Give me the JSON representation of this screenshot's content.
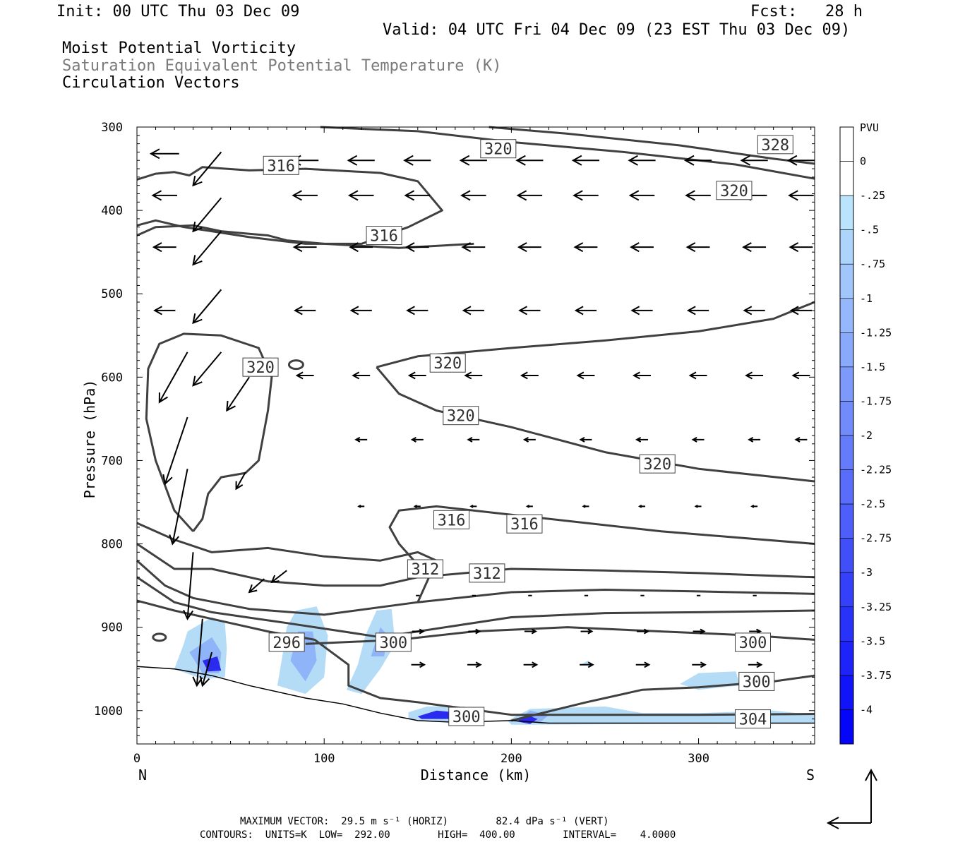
{
  "header": {
    "init": "Init: 00 UTC Thu 03 Dec 09",
    "fcst": "Fcst:   28 h",
    "valid": "Valid: 04 UTC Fri 04 Dec 09 (23 EST Thu 03 Dec 09)",
    "field1": "Moist Potential Vorticity",
    "field2": "Saturation Equivalent Potential Temperature (K)",
    "field3": "Circulation Vectors"
  },
  "footer": {
    "line1": "MAXIMUM VECTOR:  29.5 m s⁻¹ (HORIZ)        82.4 dPa s⁻¹ (VERT)",
    "line2": "CONTOURS:  UNITS=K  LOW=  292.00        HIGH=  400.00        INTERVAL=    4.0000"
  },
  "colors": {
    "contour": "#404040",
    "shade_light": "#b5dcf7",
    "shade_mid": "#8fb4f7",
    "shade_dark": "#2b2bf0",
    "vector": "#000000"
  },
  "chart_data": {
    "type": "cross-section",
    "xlabel": "Distance (km)",
    "ylabel": "Pressure (hPa)",
    "xlim": [
      0,
      362
    ],
    "ylim": [
      300,
      1040
    ],
    "x_ticks": [
      0,
      100,
      200,
      300
    ],
    "y_ticks": [
      300,
      400,
      500,
      600,
      700,
      800,
      900,
      1000
    ],
    "left_end_label": "N",
    "right_end_label": "S",
    "colorbar": {
      "units": "PVU",
      "labels": [
        "0",
        "-.25",
        "-.5",
        "-.75",
        "-1",
        "-1.25",
        "-1.5",
        "-1.75",
        "-2",
        "-2.25",
        "-2.5",
        "-2.75",
        "-3",
        "-3.25",
        "-3.5",
        "-3.75",
        "-4"
      ]
    },
    "contour_labels": [
      {
        "value": "328",
        "x": 341,
        "p": 321
      },
      {
        "value": "320",
        "x": 193,
        "p": 326
      },
      {
        "value": "316",
        "x": 77,
        "p": 346
      },
      {
        "value": "320",
        "x": 319,
        "p": 376
      },
      {
        "value": "316",
        "x": 132,
        "p": 430
      },
      {
        "value": "320",
        "x": 66,
        "p": 588
      },
      {
        "value": "320",
        "x": 166,
        "p": 583
      },
      {
        "value": "320",
        "x": 173,
        "p": 646
      },
      {
        "value": "320",
        "x": 278,
        "p": 704
      },
      {
        "value": "316",
        "x": 168,
        "p": 771
      },
      {
        "value": "316",
        "x": 207,
        "p": 776
      },
      {
        "value": "312",
        "x": 154,
        "p": 830
      },
      {
        "value": "312",
        "x": 187,
        "p": 835
      },
      {
        "value": "296",
        "x": 80,
        "p": 918
      },
      {
        "value": "300",
        "x": 137,
        "p": 918
      },
      {
        "value": "300",
        "x": 329,
        "p": 918
      },
      {
        "value": "300",
        "x": 331,
        "p": 965
      },
      {
        "value": "300",
        "x": 176,
        "p": 1007
      },
      {
        "value": "304",
        "x": 329,
        "p": 1010
      }
    ],
    "contours": [
      [
        [
          188,
          300
        ],
        [
          230,
          308
        ],
        [
          290,
          322
        ],
        [
          340,
          338
        ],
        [
          362,
          344
        ]
      ],
      [
        [
          98,
          300
        ],
        [
          150,
          305
        ],
        [
          200,
          318
        ],
        [
          260,
          330
        ],
        [
          320,
          345
        ],
        [
          362,
          362
        ]
      ],
      [
        [
          0,
          363
        ],
        [
          10,
          356
        ],
        [
          20,
          354
        ],
        [
          28,
          358
        ],
        [
          35,
          348
        ],
        [
          60,
          352
        ],
        [
          90,
          350
        ],
        [
          130,
          355
        ],
        [
          150,
          365
        ],
        [
          163,
          400
        ],
        [
          145,
          420
        ],
        [
          120,
          440
        ],
        [
          90,
          440
        ],
        [
          60,
          432
        ],
        [
          40,
          425
        ],
        [
          25,
          420
        ],
        [
          10,
          412
        ],
        [
          0,
          418
        ]
      ],
      [
        [
          0,
          430
        ],
        [
          10,
          420
        ],
        [
          30,
          418
        ],
        [
          45,
          425
        ],
        [
          60,
          428
        ],
        [
          70,
          430
        ],
        [
          80,
          436
        ],
        [
          100,
          440
        ],
        [
          140,
          445
        ],
        [
          180,
          440
        ]
      ],
      [
        [
          128,
          588
        ],
        [
          150,
          575
        ],
        [
          200,
          565
        ],
        [
          250,
          556
        ],
        [
          300,
          545
        ],
        [
          340,
          530
        ],
        [
          362,
          510
        ]
      ],
      [
        [
          128,
          588
        ],
        [
          140,
          620
        ],
        [
          160,
          640
        ],
        [
          200,
          660
        ],
        [
          250,
          690
        ],
        [
          300,
          710
        ],
        [
          362,
          725
        ]
      ],
      [
        [
          30,
          785
        ],
        [
          20,
          760
        ],
        [
          10,
          700
        ],
        [
          5,
          650
        ],
        [
          6,
          590
        ],
        [
          12,
          560
        ],
        [
          25,
          548
        ],
        [
          45,
          550
        ],
        [
          65,
          565
        ],
        [
          72,
          600
        ],
        [
          70,
          640
        ],
        [
          65,
          700
        ],
        [
          58,
          715
        ],
        [
          45,
          720
        ],
        [
          38,
          740
        ],
        [
          35,
          770
        ],
        [
          30,
          785
        ]
      ],
      [
        [
          0,
          775
        ],
        [
          20,
          795
        ],
        [
          40,
          810
        ],
        [
          70,
          805
        ],
        [
          100,
          815
        ],
        [
          130,
          820
        ],
        [
          150,
          810
        ],
        [
          160,
          820
        ],
        [
          150,
          870
        ]
      ],
      [
        [
          148,
          820
        ],
        [
          140,
          800
        ],
        [
          135,
          780
        ],
        [
          140,
          760
        ],
        [
          160,
          755
        ],
        [
          200,
          765
        ],
        [
          280,
          785
        ],
        [
          362,
          800
        ]
      ],
      [
        [
          0,
          800
        ],
        [
          20,
          830
        ],
        [
          40,
          830
        ],
        [
          70,
          845
        ],
        [
          100,
          850
        ],
        [
          130,
          850
        ],
        [
          150,
          840
        ],
        [
          200,
          830
        ],
        [
          250,
          832
        ],
        [
          300,
          835
        ],
        [
          362,
          840
        ]
      ],
      [
        [
          0,
          820
        ],
        [
          15,
          850
        ],
        [
          30,
          865
        ],
        [
          60,
          878
        ],
        [
          100,
          885
        ],
        [
          150,
          870
        ],
        [
          200,
          858
        ],
        [
          250,
          855
        ],
        [
          300,
          857
        ],
        [
          362,
          860
        ]
      ],
      [
        [
          0,
          840
        ],
        [
          20,
          870
        ],
        [
          40,
          882
        ],
        [
          80,
          895
        ],
        [
          110,
          905
        ],
        [
          130,
          912
        ],
        [
          150,
          905
        ],
        [
          200,
          888
        ],
        [
          250,
          883
        ],
        [
          300,
          882
        ],
        [
          362,
          880
        ]
      ],
      [
        [
          0,
          868
        ],
        [
          20,
          880
        ],
        [
          40,
          890
        ],
        [
          70,
          905
        ],
        [
          95,
          915
        ],
        [
          113,
          945
        ],
        [
          113,
          970
        ],
        [
          130,
          985
        ],
        [
          150,
          990
        ],
        [
          200,
          1005
        ],
        [
          260,
          1005
        ],
        [
          300,
          1005
        ],
        [
          362,
          1004
        ]
      ],
      [
        [
          90,
          920
        ],
        [
          140,
          915
        ],
        [
          180,
          905
        ],
        [
          230,
          900
        ],
        [
          280,
          905
        ],
        [
          330,
          910
        ],
        [
          362,
          915
        ]
      ],
      [
        [
          200,
          1012
        ],
        [
          240,
          990
        ],
        [
          270,
          975
        ],
        [
          300,
          972
        ],
        [
          340,
          965
        ],
        [
          362,
          958
        ]
      ]
    ],
    "shading": [
      {
        "level": "light",
        "points": [
          [
            27,
            905
          ],
          [
            40,
            888
          ],
          [
            47,
            895
          ],
          [
            48,
            925
          ],
          [
            47,
            960
          ],
          [
            35,
            962
          ],
          [
            20,
            950
          ],
          [
            25,
            920
          ]
        ]
      },
      {
        "level": "mid",
        "points": [
          [
            28,
            930
          ],
          [
            40,
            912
          ],
          [
            45,
            930
          ],
          [
            44,
            955
          ],
          [
            35,
            955
          ]
        ]
      },
      {
        "level": "dark",
        "points": [
          [
            35,
            940
          ],
          [
            43,
            935
          ],
          [
            45,
            952
          ],
          [
            38,
            953
          ]
        ]
      },
      {
        "level": "light",
        "points": [
          [
            75,
            970
          ],
          [
            78,
            930
          ],
          [
            80,
            900
          ],
          [
            85,
            880
          ],
          [
            96,
            875
          ],
          [
            102,
            910
          ],
          [
            100,
            960
          ],
          [
            90,
            980
          ]
        ]
      },
      {
        "level": "mid",
        "points": [
          [
            82,
            940
          ],
          [
            86,
            905
          ],
          [
            94,
            905
          ],
          [
            96,
            940
          ],
          [
            90,
            965
          ]
        ]
      },
      {
        "level": "light",
        "points": [
          [
            112,
            975
          ],
          [
            118,
            945
          ],
          [
            122,
            910
          ],
          [
            128,
            880
          ],
          [
            136,
            878
          ],
          [
            138,
            920
          ],
          [
            130,
            950
          ],
          [
            120,
            980
          ]
        ]
      },
      {
        "level": "mid",
        "points": [
          [
            125,
            935
          ],
          [
            130,
            900
          ],
          [
            134,
            910
          ],
          [
            132,
            935
          ]
        ]
      },
      {
        "level": "light",
        "points": [
          [
            145,
            1002
          ],
          [
            155,
            995
          ],
          [
            175,
            995
          ],
          [
            185,
            1008
          ],
          [
            170,
            1015
          ],
          [
            145,
            1010
          ]
        ]
      },
      {
        "level": "dark",
        "points": [
          [
            150,
            1007
          ],
          [
            160,
            1000
          ],
          [
            170,
            1002
          ],
          [
            172,
            1010
          ],
          [
            152,
            1010
          ]
        ]
      },
      {
        "level": "light",
        "points": [
          [
            198,
            1012
          ],
          [
            210,
            998
          ],
          [
            250,
            995
          ],
          [
            270,
            1003
          ],
          [
            300,
            1003
          ],
          [
            340,
            1000
          ],
          [
            362,
            1005
          ],
          [
            362,
            1015
          ],
          [
            200,
            1017
          ]
        ]
      },
      {
        "level": "mid",
        "points": [
          [
            203,
            1012
          ],
          [
            210,
            1000
          ],
          [
            220,
            1005
          ],
          [
            215,
            1015
          ]
        ]
      },
      {
        "level": "dark",
        "points": [
          [
            203,
            1013
          ],
          [
            208,
            1005
          ],
          [
            214,
            1010
          ],
          [
            210,
            1016
          ]
        ]
      },
      {
        "level": "light",
        "points": [
          [
            290,
            968
          ],
          [
            300,
            955
          ],
          [
            320,
            953
          ],
          [
            322,
            970
          ],
          [
            300,
            975
          ]
        ]
      },
      {
        "level": "light",
        "points": [
          [
            237,
            945
          ],
          [
            241,
            940
          ],
          [
            243,
            946
          ]
        ]
      }
    ],
    "terrain": [
      [
        0,
        947
      ],
      [
        20,
        950
      ],
      [
        30,
        954
      ],
      [
        40,
        958
      ],
      [
        60,
        970
      ],
      [
        90,
        985
      ],
      [
        110,
        992
      ],
      [
        130,
        1003
      ],
      [
        150,
        1012
      ],
      [
        170,
        1014
      ],
      [
        200,
        1012
      ],
      [
        220,
        1015
      ],
      [
        260,
        1015
      ],
      [
        300,
        1015
      ],
      [
        362,
        1015
      ]
    ],
    "vector_rows": [
      {
        "p": 332,
        "x": [
          15
        ],
        "u": -15,
        "w": 0
      },
      {
        "p": 340,
        "x": [
          90,
          120,
          150,
          180,
          210,
          240,
          270,
          300,
          330,
          355
        ],
        "u": -14,
        "w": 0
      },
      {
        "p": 382,
        "x": [
          15,
          90,
          120,
          150,
          180,
          210,
          240,
          270,
          300,
          330,
          355
        ],
        "u": -13,
        "w": 0
      },
      {
        "p": 444,
        "x": [
          15,
          90,
          120,
          150,
          180,
          210,
          240,
          270,
          300,
          330,
          355
        ],
        "u": -12,
        "w": 0
      },
      {
        "p": 520,
        "x": [
          15,
          90,
          120,
          150,
          180,
          210,
          240,
          270,
          300,
          330,
          355
        ],
        "u": -11,
        "w": 0
      },
      {
        "p": 598,
        "x": [
          90,
          120,
          150,
          180,
          210,
          240,
          270,
          300,
          330,
          355
        ],
        "u": -9,
        "w": 0
      },
      {
        "p": 675,
        "x": [
          120,
          150,
          180,
          210,
          240,
          270,
          300,
          330,
          355
        ],
        "u": -6,
        "w": 0
      },
      {
        "p": 755,
        "x": [
          120,
          150,
          180,
          210,
          240,
          270,
          300,
          330
        ],
        "u": -3,
        "w": 0
      },
      {
        "p": 862,
        "x": [
          150,
          180,
          210,
          240,
          270,
          300,
          330
        ],
        "u": 2,
        "w": 0
      },
      {
        "p": 905,
        "x": [
          150,
          180,
          210,
          240,
          270,
          300,
          330
        ],
        "u": 6,
        "w": 0
      },
      {
        "p": 945,
        "x": [
          150,
          180,
          210,
          240,
          270,
          300,
          330
        ],
        "u": 7,
        "w": 0
      }
    ],
    "vectors_slanted": [
      [
        45,
        330,
        -15,
        -40
      ],
      [
        45,
        385,
        -15,
        -40
      ],
      [
        45,
        425,
        -15,
        -40
      ],
      [
        45,
        495,
        -15,
        -40
      ],
      [
        45,
        570,
        -15,
        -40
      ],
      [
        27,
        570,
        -15,
        -60
      ],
      [
        27,
        648,
        -12,
        -80
      ],
      [
        27,
        710,
        -8,
        -90
      ],
      [
        30,
        810,
        -3,
        -80
      ],
      [
        35,
        890,
        -3,
        -80
      ],
      [
        40,
        930,
        -5,
        -40
      ],
      [
        60,
        600,
        -12,
        -40
      ],
      [
        58,
        714,
        -5,
        -20
      ],
      [
        68,
        842,
        -8,
        -16
      ],
      [
        80,
        832,
        -8,
        -14
      ]
    ]
  }
}
